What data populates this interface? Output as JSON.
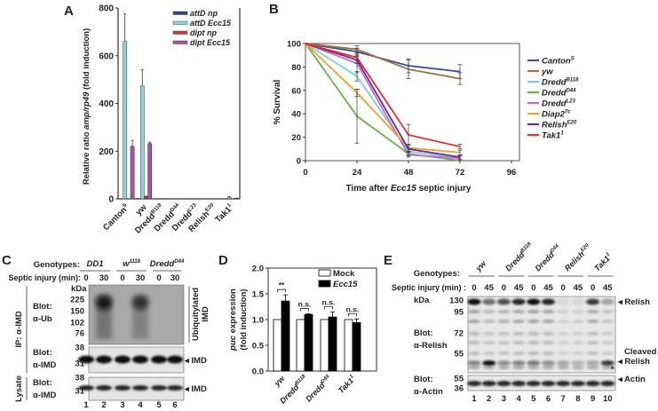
{
  "panel_labels": {
    "A": "A",
    "B": "B",
    "C": "C",
    "D": "D",
    "E": "E"
  },
  "chart_data": [
    {
      "panel": "A",
      "type": "bar",
      "ylabel_parts": [
        "Relative ratio ",
        "amp/rp49",
        " (fold induction)"
      ],
      "ylim": [
        0,
        800
      ],
      "yticks": [
        "0",
        "200",
        "400",
        "600",
        "800"
      ],
      "categories": [
        {
          "base": "Canton",
          "sup": "S"
        },
        {
          "base": "yw",
          "sup": ""
        },
        {
          "base": "Dredd",
          "sup": "B118"
        },
        {
          "base": "Dredd",
          "sup": "D44"
        },
        {
          "base": "Dredd",
          "sup": "L23"
        },
        {
          "base": "Relish",
          "sup": "E20"
        },
        {
          "base": "Tak1",
          "sup": "1"
        }
      ],
      "series": [
        {
          "name": "attD np",
          "color": "#2e3f8f",
          "values": [
            0,
            2,
            0,
            0,
            0,
            0,
            1
          ],
          "errors": [
            0,
            0,
            0,
            0,
            0,
            0,
            0
          ]
        },
        {
          "name": "attD Ecc15",
          "color": "#8fd3e8",
          "values": [
            660,
            473,
            0,
            0,
            0,
            0,
            6
          ],
          "errors": [
            115,
            68,
            0,
            0,
            0,
            0,
            4
          ]
        },
        {
          "name": "dipt np",
          "color": "#d9362b",
          "values": [
            0,
            8,
            0,
            0,
            0,
            0,
            1
          ],
          "errors": [
            0,
            3,
            0,
            0,
            0,
            0,
            0
          ]
        },
        {
          "name": "dipt Ecc15",
          "color": "#a455a8",
          "values": [
            220,
            232,
            0,
            0,
            0,
            0,
            2
          ],
          "errors": [
            25,
            6,
            0,
            0,
            0,
            0,
            1
          ]
        }
      ]
    },
    {
      "panel": "B",
      "type": "line",
      "ylabel": "% Survival",
      "xlabel_parts": [
        "Time after ",
        "Ecc15",
        " septic injury"
      ],
      "x": [
        0,
        24,
        48,
        72
      ],
      "xlim": [
        0,
        96
      ],
      "ylim": [
        0,
        100
      ],
      "xticks": [
        "0",
        "24",
        "48",
        "72",
        "96"
      ],
      "yticks": [
        "0",
        "20",
        "40",
        "60",
        "80",
        "100"
      ],
      "legend_position": "right",
      "series": [
        {
          "base": "Canton",
          "sup": "S",
          "color": "#3a4fa0",
          "values": [
            100,
            93,
            81,
            76
          ],
          "errors": [
            0,
            3,
            6,
            6
          ]
        },
        {
          "base": "yw",
          "sup": "",
          "color": "#a0703c",
          "values": [
            100,
            95,
            78,
            70
          ],
          "errors": [
            0,
            3,
            8,
            5
          ]
        },
        {
          "base": "Dredd",
          "sup": "B118",
          "color": "#7ecbe6",
          "values": [
            100,
            72,
            8,
            2
          ],
          "errors": [
            0,
            4,
            3,
            2
          ]
        },
        {
          "base": "Dredd",
          "sup": "D44",
          "color": "#6ab04c",
          "values": [
            100,
            38,
            6,
            0
          ],
          "errors": [
            0,
            23,
            2,
            0
          ]
        },
        {
          "base": "Dredd",
          "sup": "L23",
          "color": "#c46ad0",
          "values": [
            100,
            83,
            5,
            2
          ],
          "errors": [
            0,
            8,
            2,
            2
          ]
        },
        {
          "base": "Diap2",
          "sup": "7c",
          "color": "#f0a030",
          "values": [
            100,
            58,
            11,
            7
          ],
          "errors": [
            0,
            3,
            3,
            2
          ]
        },
        {
          "base": "Relish",
          "sup": "E20",
          "color": "#6a2a90",
          "values": [
            100,
            86,
            10,
            3
          ],
          "errors": [
            0,
            3,
            3,
            2
          ]
        },
        {
          "base": "Tak1",
          "sup": "1",
          "color": "#e03030",
          "values": [
            100,
            88,
            22,
            12
          ],
          "errors": [
            0,
            3,
            9,
            2
          ]
        }
      ]
    },
    {
      "panel": "D",
      "type": "bar",
      "ylabel_line1_parts": [
        "puc",
        " expression"
      ],
      "ylabel_line2": "(fold induction)",
      "ylim": [
        0,
        2
      ],
      "yticks": [
        "0.0",
        "0.5",
        "1.0",
        "1.5",
        "2.0"
      ],
      "categories": [
        {
          "base": "yw",
          "sup": ""
        },
        {
          "base": "Dredd",
          "sup": "B118"
        },
        {
          "base": "Dredd",
          "sup": "D44"
        },
        {
          "base": "Tak1",
          "sup": "1"
        }
      ],
      "significance": [
        "**",
        "n.s.",
        "n.s.",
        "n.s."
      ],
      "series": [
        {
          "name": "Mock",
          "color": "#ffffff",
          "values": [
            1.0,
            1.0,
            1.0,
            1.0
          ],
          "errors": [
            0,
            0,
            0,
            0
          ]
        },
        {
          "name": "Ecc15",
          "color": "#000000",
          "values": [
            1.36,
            1.1,
            1.05,
            0.94
          ],
          "errors": [
            0.12,
            0.01,
            0.1,
            0.07
          ]
        }
      ]
    }
  ],
  "panel_c": {
    "genotypes_label": "Genotypes:",
    "septic_label": "Septic injury (min):",
    "genotypes": [
      {
        "base": "DD1",
        "sup": ""
      },
      {
        "base": "w",
        "sup": "1118"
      },
      {
        "base": "Dredd",
        "sup": "D44"
      }
    ],
    "times": [
      "0",
      "30",
      "0",
      "30",
      "0",
      "30"
    ],
    "lane_numbers": [
      "1",
      "2",
      "3",
      "4",
      "5",
      "6"
    ],
    "kda": "kDa",
    "mw_ub": [
      "225",
      "150",
      "102",
      "76"
    ],
    "mw_imd": [
      "38",
      "31"
    ],
    "mw_lysate": [
      "38",
      "31"
    ],
    "blot": "Blot:",
    "ab_ub": "α-Ub",
    "ab_imd": "α-IMD",
    "ip_label": "IP: α-IMD",
    "lysate_label": "Lysate",
    "ubiq_line1": "Ubiquitylated",
    "ubiq_line2": "IMD",
    "imd_marker": "◂ IMD"
  },
  "panel_e": {
    "genotypes_label": "Genotypes:",
    "septic_label": "Septic injury (min) :",
    "genotypes": [
      {
        "base": "yw",
        "sup": ""
      },
      {
        "base": "Dredd",
        "sup": "B118"
      },
      {
        "base": "Dredd",
        "sup": "D44"
      },
      {
        "base": "Relish",
        "sup": "E20"
      },
      {
        "base": "Tak1",
        "sup": "1"
      }
    ],
    "times": [
      "0",
      "45",
      "0",
      "45",
      "0",
      "45",
      "0",
      "45",
      "0",
      "45"
    ],
    "lane_numbers": [
      "1",
      "2",
      "3",
      "4",
      "5",
      "6",
      "7",
      "8",
      "9",
      "10"
    ],
    "kda": "kDa",
    "mw_relish": [
      "130",
      "95",
      "72",
      "55"
    ],
    "mw_actin": [
      "55",
      "36"
    ],
    "blot": "Blot:",
    "ab_relish": "α-Relish",
    "ab_actin": "α-Actin",
    "relish_marker": "◂ Relish",
    "cleaved": "Cleaved",
    "cleaved_marker": "◂ Relish",
    "asterisk": "*",
    "actin_marker": "◂ Actin",
    "full_relish_intensity": [
      1.0,
      0.55,
      0.7,
      0.9,
      1.0,
      0.9,
      0.08,
      0.08,
      0.8,
      0.3
    ],
    "cleaved_relish_intensity": [
      0.45,
      1.0,
      0.4,
      0.45,
      0.5,
      0.4,
      0.3,
      0.25,
      0.3,
      0.8
    ]
  }
}
